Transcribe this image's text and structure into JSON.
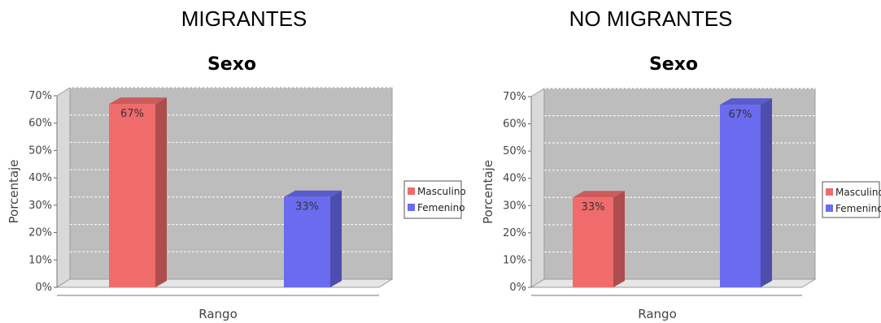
{
  "chart_data": [
    {
      "type": "bar",
      "heading": "MIGRANTES",
      "title": "Sexo",
      "xlabel": "Rango",
      "ylabel": "Porcentaje",
      "ylim": [
        0,
        70
      ],
      "yticks": [
        "0%",
        "10%",
        "20%",
        "30%",
        "40%",
        "50%",
        "60%",
        "70%"
      ],
      "grid": true,
      "legend_position": "right",
      "series": [
        {
          "name": "Masculino",
          "value": 67,
          "label": "67%",
          "color": "#f06b6b"
        },
        {
          "name": "Femenino",
          "value": 33,
          "label": "33%",
          "color": "#6b6bf0"
        }
      ]
    },
    {
      "type": "bar",
      "heading": "NO MIGRANTES",
      "title": "Sexo",
      "xlabel": "Rango",
      "ylabel": "Porcentaje",
      "ylim": [
        0,
        70
      ],
      "yticks": [
        "0%",
        "10%",
        "20%",
        "30%",
        "40%",
        "50%",
        "60%",
        "70%"
      ],
      "grid": true,
      "legend_position": "right",
      "series": [
        {
          "name": "Masculino",
          "value": 33,
          "label": "33%",
          "color": "#f06b6b"
        },
        {
          "name": "Femenino",
          "value": 67,
          "label": "67%",
          "color": "#6b6bf0"
        }
      ]
    }
  ]
}
